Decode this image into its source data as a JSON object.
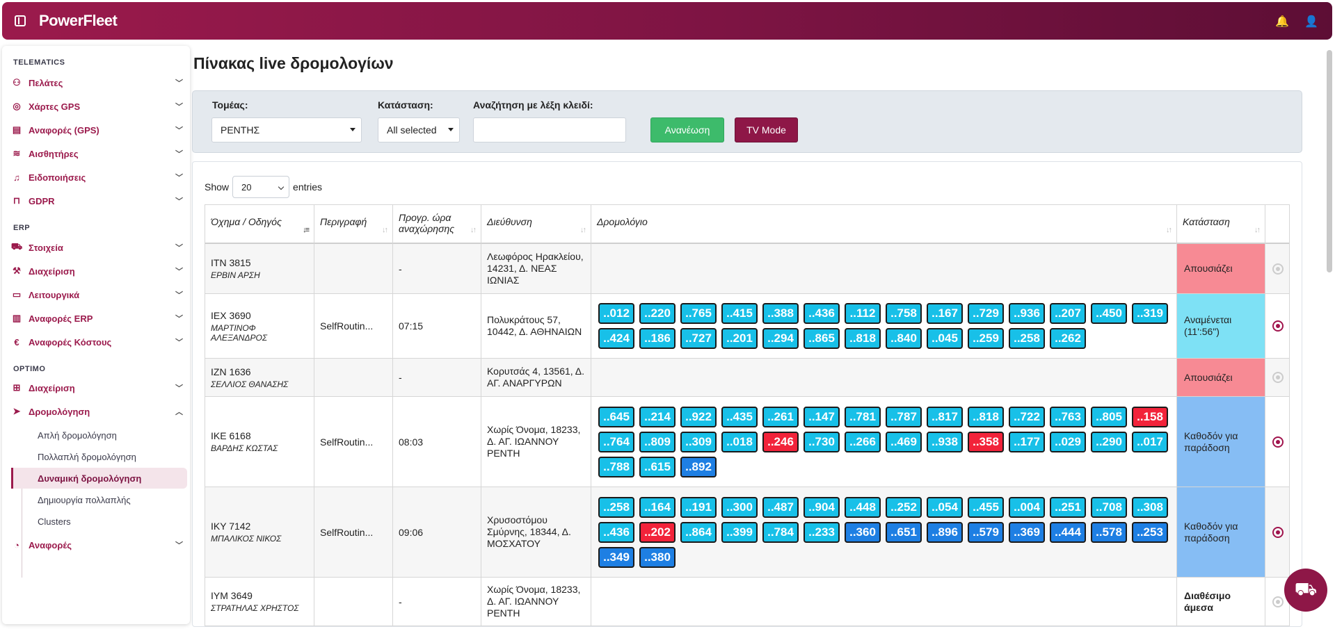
{
  "app": {
    "logo": "PowerFleet",
    "bell_icon": "🔔",
    "user_icon": "👤"
  },
  "sidebar": {
    "sections": {
      "telematics": "TELEMATICS",
      "erp": "ERP",
      "optimo": "OPTIMO"
    },
    "telematics": [
      "Πελάτες",
      "Χάρτες GPS",
      "Αναφορές (GPS)",
      "Αισθητήρες",
      "Ειδοποιήσεις",
      "GDPR"
    ],
    "erp": [
      "Στοιχεία",
      "Διαχείριση",
      "Λειτουργικά",
      "Αναφορές ERP",
      "Αναφορές Κόστους"
    ],
    "optimo": [
      "Διαχείριση",
      "Δρομολόγηση"
    ],
    "routing_sub": [
      "Απλή δρομολόγηση",
      "Πολλαπλή δρομολόγηση",
      "Δυναμική δρομολόγηση",
      "Δημιουργία πολλαπλής",
      "Clusters"
    ],
    "reports": "Αναφορές"
  },
  "page": {
    "title": "Πίνακας live δρομολογίων"
  },
  "filters": {
    "sector_label": "Τομέας:",
    "sector_value": "ΡΕΝΤΗΣ",
    "status_label": "Κατάσταση:",
    "status_value": "All selected",
    "search_label": "Αναζήτηση με λέξη κλειδί:",
    "search_value": "",
    "refresh_button": "Ανανέωση",
    "tv_button": "TV Mode"
  },
  "table_controls": {
    "show": "Show",
    "entries_value": "20",
    "entries": "entries"
  },
  "columns": [
    "Όχημα / Οδηγός",
    "Περιγραφή",
    "Προγρ. ώρα αναχώρησης",
    "Διεύθυνση",
    "Δρομολόγιο",
    "Κατάσταση"
  ],
  "rows": [
    {
      "vehicle": "ΙΤΝ 3815",
      "driver": "ΕΡΒΙΝ ΑΡΣΗ",
      "desc": "",
      "time": "-",
      "address": "Λεωφόρος Ηρακλείου, 14231, Δ. ΝΕΑΣ ΙΩΝΙΑΣ",
      "status": "Απουσιάζει",
      "status_color": "#f78a94",
      "chips": []
    },
    {
      "vehicle": "ΙΕΧ 3690",
      "driver": "ΜΑΡΤΙΝΟΦ ΑΛΕΞΑΝΔΡΟΣ",
      "desc": "SelfRoutin...",
      "time": "07:15",
      "address": "Πολυκράτους 57, 10442, Δ. ΑΘΗΝΑΙΩΝ",
      "status": "Αναμένεται (11':56\")",
      "status_color": "#7ee1f5",
      "chips": [
        {
          "l": "..012",
          "c": "cyan"
        },
        {
          "l": "..220",
          "c": "cyan"
        },
        {
          "l": "..765",
          "c": "cyan"
        },
        {
          "l": "..415",
          "c": "cyan"
        },
        {
          "l": "..388",
          "c": "cyan"
        },
        {
          "l": "..436",
          "c": "cyan"
        },
        {
          "l": "..112",
          "c": "cyan"
        },
        {
          "l": "..758",
          "c": "cyan"
        },
        {
          "l": "..167",
          "c": "cyan"
        },
        {
          "l": "..729",
          "c": "cyan"
        },
        {
          "l": "..936",
          "c": "cyan"
        },
        {
          "l": "..207",
          "c": "cyan"
        },
        {
          "l": "..450",
          "c": "cyan"
        },
        {
          "l": "..319",
          "c": "cyan"
        },
        {
          "l": "..424",
          "c": "cyan"
        },
        {
          "l": "..186",
          "c": "cyan"
        },
        {
          "l": "..727",
          "c": "cyan"
        },
        {
          "l": "..201",
          "c": "cyan"
        },
        {
          "l": "..294",
          "c": "cyan"
        },
        {
          "l": "..865",
          "c": "cyan"
        },
        {
          "l": "..818",
          "c": "cyan"
        },
        {
          "l": "..840",
          "c": "cyan"
        },
        {
          "l": "..045",
          "c": "cyan"
        },
        {
          "l": "..259",
          "c": "cyan"
        },
        {
          "l": "..258",
          "c": "cyan"
        },
        {
          "l": "..262",
          "c": "cyan"
        }
      ]
    },
    {
      "vehicle": "ΙΖΝ 1636",
      "driver": "ΣΕΛΛΙΟΣ ΘΑΝΑΣΗΣ",
      "desc": "",
      "time": "-",
      "address": "Κορυτσάς 4, 13561, Δ. ΑΓ. ΑΝΑΡΓΥΡΩΝ",
      "status": "Απουσιάζει",
      "status_color": "#f78a94",
      "chips": []
    },
    {
      "vehicle": "ΙΚΕ 6168",
      "driver": "ΒΑΡΔΗΣ ΚΩΣΤΑΣ",
      "desc": "SelfRoutin...",
      "time": "08:03",
      "address": "Χωρίς Όνομα, 18233, Δ. ΑΓ. ΙΩΑΝΝΟΥ ΡΕΝΤΗ",
      "status": "Καθοδόν για παράδοση",
      "status_color": "#86bdf4",
      "chips": [
        {
          "l": "..645",
          "c": "cyan"
        },
        {
          "l": "..214",
          "c": "cyan"
        },
        {
          "l": "..922",
          "c": "cyan"
        },
        {
          "l": "..435",
          "c": "cyan"
        },
        {
          "l": "..261",
          "c": "cyan"
        },
        {
          "l": "..147",
          "c": "cyan"
        },
        {
          "l": "..781",
          "c": "cyan"
        },
        {
          "l": "..787",
          "c": "cyan"
        },
        {
          "l": "..817",
          "c": "cyan"
        },
        {
          "l": "..818",
          "c": "cyan"
        },
        {
          "l": "..722",
          "c": "cyan"
        },
        {
          "l": "..763",
          "c": "cyan"
        },
        {
          "l": "..805",
          "c": "cyan"
        },
        {
          "l": "..158",
          "c": "red"
        },
        {
          "l": "..764",
          "c": "cyan"
        },
        {
          "l": "..809",
          "c": "cyan"
        },
        {
          "l": "..309",
          "c": "cyan"
        },
        {
          "l": "..018",
          "c": "cyan"
        },
        {
          "l": "..246",
          "c": "red"
        },
        {
          "l": "..730",
          "c": "cyan"
        },
        {
          "l": "..266",
          "c": "cyan"
        },
        {
          "l": "..469",
          "c": "cyan"
        },
        {
          "l": "..938",
          "c": "cyan"
        },
        {
          "l": "..358",
          "c": "red"
        },
        {
          "l": "..177",
          "c": "cyan"
        },
        {
          "l": "..029",
          "c": "cyan"
        },
        {
          "l": "..290",
          "c": "cyan"
        },
        {
          "l": "..017",
          "c": "cyan"
        },
        {
          "l": "..788",
          "c": "cyan"
        },
        {
          "l": "..615",
          "c": "cyan"
        },
        {
          "l": "..892",
          "c": "blue"
        }
      ]
    },
    {
      "vehicle": "ΙΚΥ 7142",
      "driver": "ΜΠΑΛΙΚΟΣ ΝΙΚΟΣ",
      "desc": "SelfRoutin...",
      "time": "09:06",
      "address": "Χρυσοστόμου Σμύρνης, 18344, Δ. ΜΟΣΧΑΤΟΥ",
      "status": "Καθοδόν για παράδοση",
      "status_color": "#86bdf4",
      "chips": [
        {
          "l": "..258",
          "c": "cyan"
        },
        {
          "l": "..164",
          "c": "cyan"
        },
        {
          "l": "..191",
          "c": "cyan"
        },
        {
          "l": "..300",
          "c": "cyan"
        },
        {
          "l": "..487",
          "c": "cyan"
        },
        {
          "l": "..904",
          "c": "cyan"
        },
        {
          "l": "..448",
          "c": "cyan"
        },
        {
          "l": "..252",
          "c": "cyan"
        },
        {
          "l": "..054",
          "c": "cyan"
        },
        {
          "l": "..455",
          "c": "cyan"
        },
        {
          "l": "..004",
          "c": "cyan"
        },
        {
          "l": "..251",
          "c": "cyan"
        },
        {
          "l": "..708",
          "c": "cyan"
        },
        {
          "l": "..308",
          "c": "cyan"
        },
        {
          "l": "..436",
          "c": "cyan"
        },
        {
          "l": "..202",
          "c": "red"
        },
        {
          "l": "..864",
          "c": "cyan"
        },
        {
          "l": "..399",
          "c": "cyan"
        },
        {
          "l": "..784",
          "c": "cyan"
        },
        {
          "l": "..233",
          "c": "cyan"
        },
        {
          "l": "..360",
          "c": "blue"
        },
        {
          "l": "..651",
          "c": "blue"
        },
        {
          "l": "..896",
          "c": "blue"
        },
        {
          "l": "..579",
          "c": "blue"
        },
        {
          "l": "..369",
          "c": "blue"
        },
        {
          "l": "..444",
          "c": "blue"
        },
        {
          "l": "..578",
          "c": "blue"
        },
        {
          "l": "..253",
          "c": "blue"
        },
        {
          "l": "..349",
          "c": "blue"
        },
        {
          "l": "..380",
          "c": "blue"
        }
      ]
    },
    {
      "vehicle": "ΙΥΜ 3649",
      "driver": "ΣΤΡΑΤΗΛΑΣ ΧΡΗΣΤΟΣ",
      "desc": "",
      "time": "-",
      "address": "Χωρίς Όνομα, 18233, Δ. ΑΓ. ΙΩΑΝΝΟΥ ΡΕΝΤΗ",
      "status": "Διαθέσιμο άμεσα",
      "status_color": "",
      "chips": []
    }
  ],
  "fab_icon": "truck-icon"
}
